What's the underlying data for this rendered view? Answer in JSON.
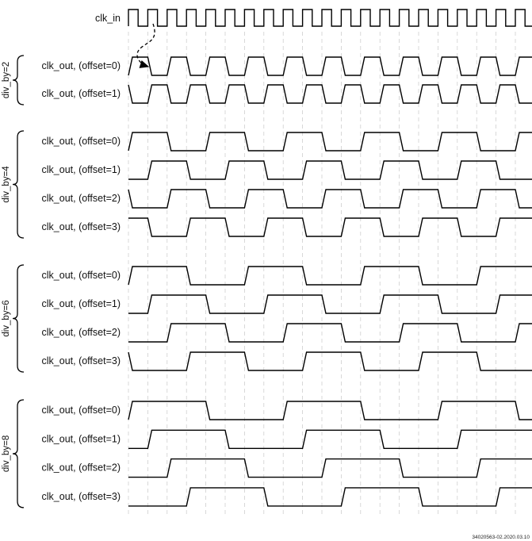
{
  "clock": {
    "label": "clk_in",
    "cycles": 21
  },
  "groups": [
    {
      "label": "div_by=2",
      "div": 2,
      "rows": [
        {
          "label": "clk_out, (offset=0)",
          "offset": 0
        },
        {
          "label": "clk_out, (offset=1)",
          "offset": 1
        }
      ]
    },
    {
      "label": "div_by=4",
      "div": 4,
      "rows": [
        {
          "label": "clk_out, (offset=0)",
          "offset": 0
        },
        {
          "label": "clk_out, (offset=1)",
          "offset": 1
        },
        {
          "label": "clk_out, (offset=2)",
          "offset": 2
        },
        {
          "label": "clk_out, (offset=3)",
          "offset": 3
        }
      ]
    },
    {
      "label": "div_by=6",
      "div": 6,
      "rows": [
        {
          "label": "clk_out, (offset=0)",
          "offset": 0
        },
        {
          "label": "clk_out, (offset=1)",
          "offset": 1
        },
        {
          "label": "clk_out, (offset=2)",
          "offset": 2
        },
        {
          "label": "clk_out, (offset=3)",
          "offset": 3
        }
      ]
    },
    {
      "label": "div_by=8",
      "div": 8,
      "rows": [
        {
          "label": "clk_out, (offset=0)",
          "offset": 0
        },
        {
          "label": "clk_out, (offset=1)",
          "offset": 1
        },
        {
          "label": "clk_out, (offset=2)",
          "offset": 2
        },
        {
          "label": "clk_out, (offset=3)",
          "offset": 3
        }
      ]
    }
  ],
  "footer": "34020563-02.2020.03.10"
}
